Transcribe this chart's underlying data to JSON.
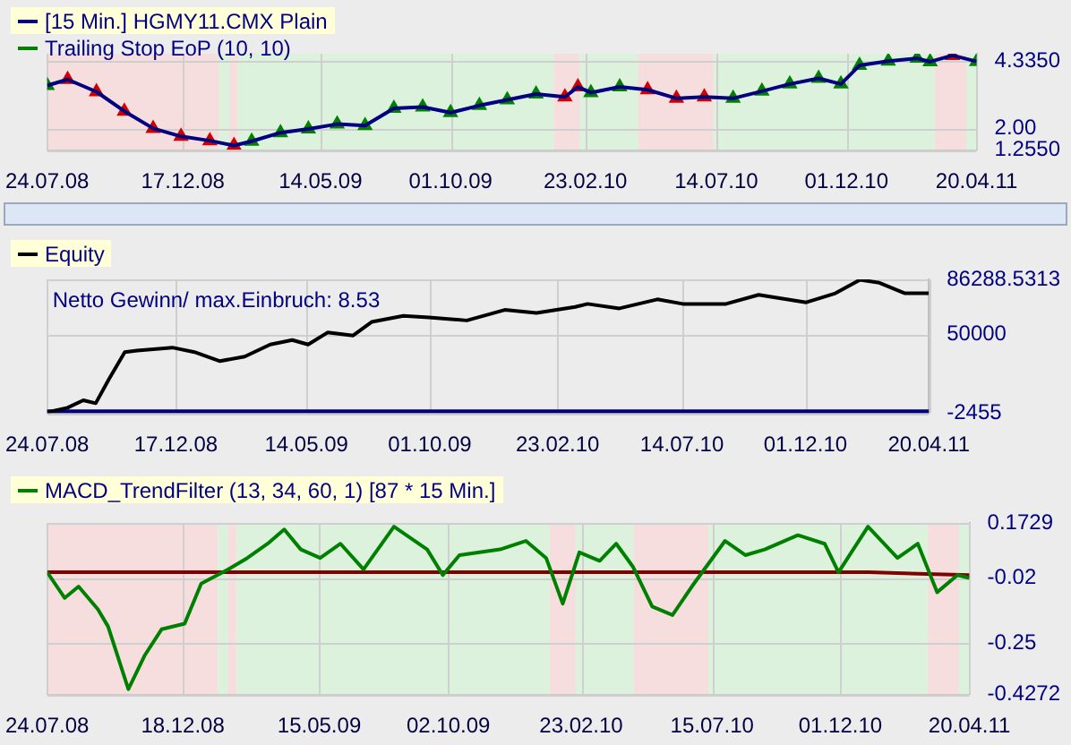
{
  "chart_data": [
    {
      "type": "line",
      "legend": "top left",
      "grid": true,
      "x": [
        "2008-07-24",
        "2008-08-15",
        "2008-09-15",
        "2008-10-15",
        "2008-11-15",
        "2008-12-15",
        "2009-01-15",
        "2009-02-10",
        "2009-03-01",
        "2009-04-01",
        "2009-05-01",
        "2009-06-01",
        "2009-07-01",
        "2009-08-01",
        "2009-09-01",
        "2009-10-01",
        "2009-11-01",
        "2009-12-01",
        "2010-01-01",
        "2010-02-01",
        "2010-02-15",
        "2010-03-01",
        "2010-04-01",
        "2010-05-01",
        "2010-06-01",
        "2010-07-01",
        "2010-08-01",
        "2010-09-01",
        "2010-10-01",
        "2010-11-01",
        "2010-11-25",
        "2010-12-15",
        "2011-01-15",
        "2011-02-15",
        "2011-03-01",
        "2011-03-25",
        "2011-04-20"
      ],
      "series": [
        {
          "name": "[15 Min.] HGMY11.CMX Plain",
          "type": "line",
          "color": "#000080",
          "values": [
            3.5,
            3.71,
            3.28,
            2.6,
            2.0,
            1.72,
            1.57,
            1.4,
            1.55,
            1.85,
            1.98,
            2.15,
            2.1,
            2.7,
            2.75,
            2.55,
            2.8,
            3.0,
            3.2,
            3.1,
            3.45,
            3.25,
            3.45,
            3.35,
            3.05,
            3.1,
            3.05,
            3.3,
            3.55,
            3.75,
            3.55,
            4.2,
            4.35,
            4.45,
            4.33,
            4.55,
            4.34
          ]
        },
        {
          "name": "Trailing Stop EoP  (10, 10)",
          "type": "scatter",
          "marker": "triangle",
          "color": "#008000",
          "colors": [
            "#008000",
            "#d00000",
            "#d00000",
            "#d00000",
            "#d00000",
            "#d00000",
            "#d00000",
            "#d00000",
            "#008000",
            "#008000",
            "#008000",
            "#008000",
            "#008000",
            "#008000",
            "#008000",
            "#008000",
            "#008000",
            "#008000",
            "#008000",
            "#d00000",
            "#d00000",
            "#008000",
            "#008000",
            "#d00000",
            "#d00000",
            "#d00000",
            "#008000",
            "#008000",
            "#008000",
            "#008000",
            "#008000",
            "#008000",
            "#008000",
            "#008000",
            "#008000",
            "#d00000",
            "#008000"
          ],
          "values": [
            3.5,
            3.71,
            3.28,
            2.6,
            2.0,
            1.72,
            1.57,
            1.4,
            1.55,
            1.85,
            1.98,
            2.15,
            2.1,
            2.7,
            2.75,
            2.55,
            2.8,
            3.0,
            3.2,
            3.1,
            3.45,
            3.25,
            3.45,
            3.35,
            3.05,
            3.1,
            3.05,
            3.3,
            3.55,
            3.75,
            3.55,
            4.2,
            4.35,
            4.45,
            4.33,
            4.55,
            4.34
          ]
        }
      ],
      "xlim": [
        "2008-07-24",
        "2011-04-20"
      ],
      "xticks": [
        {
          "value": "2008-07-24",
          "label": "24.07.08"
        },
        {
          "value": "2008-12-17",
          "label": "17.12.08"
        },
        {
          "value": "2009-05-14",
          "label": "14.05.09"
        },
        {
          "value": "2009-10-01",
          "label": "01.10.09"
        },
        {
          "value": "2010-02-23",
          "label": "23.02.10"
        },
        {
          "value": "2010-07-14",
          "label": "14.07.10"
        },
        {
          "value": "2010-12-01",
          "label": "01.12.10"
        },
        {
          "value": "2011-04-20",
          "label": "20.04.11"
        }
      ],
      "ylim": [
        1.255,
        4.61
      ],
      "yticks": [
        {
          "value": 1.255,
          "label": "1.2550"
        },
        {
          "value": 2,
          "label": "2.00"
        },
        {
          "value": 4.335,
          "label": "4.3350"
        }
      ],
      "bands": [
        {
          "axis": "x",
          "from": "2008-07-24",
          "to": "2009-01-25",
          "color": "#f6dede"
        },
        {
          "axis": "x",
          "from": "2009-01-25",
          "to": "2009-02-05",
          "color": "#ddf2dd"
        },
        {
          "axis": "x",
          "from": "2009-02-05",
          "to": "2009-02-14",
          "color": "#f6dede"
        },
        {
          "axis": "x",
          "from": "2009-02-14",
          "to": "2010-01-20",
          "color": "#ddf2dd"
        },
        {
          "axis": "x",
          "from": "2010-01-20",
          "to": "2010-02-17",
          "color": "#f6dede"
        },
        {
          "axis": "x",
          "from": "2010-02-17",
          "to": "2010-04-21",
          "color": "#ddf2dd"
        },
        {
          "axis": "x",
          "from": "2010-04-21",
          "to": "2010-07-11",
          "color": "#f6dede"
        },
        {
          "axis": "x",
          "from": "2010-07-11",
          "to": "2011-03-06",
          "color": "#ddf2dd"
        },
        {
          "axis": "x",
          "from": "2011-03-06",
          "to": "2011-04-09",
          "color": "#f6dede"
        },
        {
          "axis": "x",
          "from": "2011-04-09",
          "to": "2011-04-20",
          "color": "#ddf2dd"
        }
      ]
    },
    {
      "type": "line",
      "legend": "top left",
      "grid": true,
      "series": [
        {
          "name": "Equity",
          "color": "#000000",
          "x": [
            "2008-07-24",
            "2008-08-16",
            "2008-09-03",
            "2008-09-17",
            "2008-10-02",
            "2008-10-20",
            "2008-11-03",
            "2008-12-13",
            "2009-01-07",
            "2009-02-05",
            "2009-03-05",
            "2009-04-03",
            "2009-04-28",
            "2009-05-16",
            "2009-06-07",
            "2009-07-06",
            "2009-07-27",
            "2009-09-01",
            "2009-09-30",
            "2009-11-12",
            "2009-12-25",
            "2010-01-30",
            "2010-03-15",
            "2010-03-29",
            "2010-05-04",
            "2010-06-16",
            "2010-07-15",
            "2010-09-02",
            "2010-10-09",
            "2010-12-02",
            "2011-01-04",
            "2011-02-01",
            "2011-02-23",
            "2011-03-24",
            "2011-04-20"
          ],
          "values": [
            -2000,
            1000,
            6000,
            4000,
            20000,
            38000,
            39000,
            41000,
            38000,
            32000,
            35000,
            43000,
            46000,
            43000,
            51000,
            49000,
            58000,
            62000,
            61000,
            59000,
            66000,
            64000,
            68000,
            70000,
            67000,
            73000,
            70000,
            70000,
            76000,
            71000,
            77000,
            86000,
            84000,
            77000,
            77000
          ]
        }
      ],
      "xlim": [
        "2008-07-24",
        "2011-04-20"
      ],
      "xticks": [
        {
          "value": "2008-07-24",
          "label": "24.07.08"
        },
        {
          "value": "2008-12-17",
          "label": "17.12.08"
        },
        {
          "value": "2009-05-14",
          "label": "14.05.09"
        },
        {
          "value": "2009-10-01",
          "label": "01.10.09"
        },
        {
          "value": "2010-02-23",
          "label": "23.02.10"
        },
        {
          "value": "2010-07-14",
          "label": "14.07.10"
        },
        {
          "value": "2010-12-01",
          "label": "01.12.10"
        },
        {
          "value": "2011-04-20",
          "label": "20.04.11"
        }
      ],
      "ylim": [
        -2455,
        86288.5313
      ],
      "yticks": [
        -2455,
        50000,
        86288.5313
      ],
      "ref_lines": [
        {
          "axis": "y",
          "value": -2455,
          "color": "#000080"
        }
      ],
      "annotations": [
        "Netto Gewinn/ max.Einbruch: 8.53"
      ]
    },
    {
      "type": "line",
      "legend": "top left",
      "grid": true,
      "series": [
        {
          "name": "MACD_TrendFilter  (13, 34, 60, 1) [87 * 15 Min.]",
          "color": "#008000",
          "x": [
            "2008-07-24",
            "2008-08-12",
            "2008-08-27",
            "2008-09-17",
            "2008-09-28",
            "2008-10-20",
            "2008-11-07",
            "2008-11-25",
            "2008-12-20",
            "2009-01-07",
            "2009-02-05",
            "2009-02-26",
            "2009-03-20",
            "2009-04-07",
            "2009-04-25",
            "2009-05-16",
            "2009-06-07",
            "2009-07-02",
            "2009-08-04",
            "2009-09-09",
            "2009-09-26",
            "2009-10-14",
            "2009-11-27",
            "2009-12-25",
            "2010-01-16",
            "2010-02-03",
            "2010-02-21",
            "2010-03-15",
            "2010-04-02",
            "2010-04-20",
            "2010-05-11",
            "2010-06-02",
            "2010-06-23",
            "2010-07-29",
            "2010-08-20",
            "2010-09-10",
            "2010-10-16",
            "2010-11-14",
            "2010-11-29",
            "2010-12-31",
            "2011-02-01",
            "2011-02-23",
            "2011-03-16",
            "2011-04-07",
            "2011-04-20"
          ],
          "values": [
            0.0,
            -0.09,
            -0.05,
            -0.13,
            -0.19,
            -0.41,
            -0.29,
            -0.2,
            -0.18,
            -0.04,
            0.01,
            0.05,
            0.1,
            0.15,
            0.08,
            0.05,
            0.1,
            0.01,
            0.16,
            0.08,
            -0.01,
            0.06,
            0.08,
            0.11,
            0.05,
            -0.11,
            0.07,
            0.04,
            0.1,
            0.02,
            -0.12,
            -0.15,
            -0.05,
            0.11,
            0.06,
            0.08,
            0.13,
            0.1,
            0.0,
            0.16,
            0.05,
            0.1,
            -0.07,
            -0.01,
            -0.02
          ]
        },
        {
          "color": "#800000",
          "x": [
            "2008-07-24",
            "2009-06-01",
            "2010-01-01",
            "2010-08-01",
            "2011-01-01",
            "2011-04-20"
          ],
          "values": [
            0.0,
            0.0,
            0.0,
            0.0,
            0.0,
            -0.01
          ]
        }
      ],
      "xlim": [
        "2008-07-24",
        "2011-04-20"
      ],
      "xticks": [
        {
          "value": "2008-07-24",
          "label": "24.07.08"
        },
        {
          "value": "2008-12-18",
          "label": "18.12.08"
        },
        {
          "value": "2009-05-15",
          "label": "15.05.09"
        },
        {
          "value": "2009-10-02",
          "label": "02.10.09"
        },
        {
          "value": "2010-02-23",
          "label": "23.02.10"
        },
        {
          "value": "2010-07-15",
          "label": "15.07.10"
        },
        {
          "value": "2010-12-01",
          "label": "01.12.10"
        },
        {
          "value": "2011-04-20",
          "label": "20.04.11"
        }
      ],
      "ylim": [
        -0.4272,
        0.1729
      ],
      "yticks": [
        -0.4272,
        -0.25,
        -0.02,
        0.1729
      ],
      "bands": [
        {
          "axis": "x",
          "from": "2008-07-24",
          "to": "2009-01-25",
          "color": "#f6dede"
        },
        {
          "axis": "x",
          "from": "2009-01-25",
          "to": "2009-02-05",
          "color": "#ddf2dd"
        },
        {
          "axis": "x",
          "from": "2009-02-05",
          "to": "2009-02-14",
          "color": "#f6dede"
        },
        {
          "axis": "x",
          "from": "2009-02-14",
          "to": "2010-01-20",
          "color": "#ddf2dd"
        },
        {
          "axis": "x",
          "from": "2010-01-20",
          "to": "2010-02-17",
          "color": "#f6dede"
        },
        {
          "axis": "x",
          "from": "2010-02-17",
          "to": "2010-04-21",
          "color": "#ddf2dd"
        },
        {
          "axis": "x",
          "from": "2010-04-21",
          "to": "2010-07-11",
          "color": "#f6dede"
        },
        {
          "axis": "x",
          "from": "2010-07-11",
          "to": "2011-03-06",
          "color": "#ddf2dd"
        },
        {
          "axis": "x",
          "from": "2011-03-06",
          "to": "2011-04-09",
          "color": "#f6dede"
        },
        {
          "axis": "x",
          "from": "2011-04-09",
          "to": "2011-04-20",
          "color": "#ddf2dd"
        }
      ]
    }
  ]
}
